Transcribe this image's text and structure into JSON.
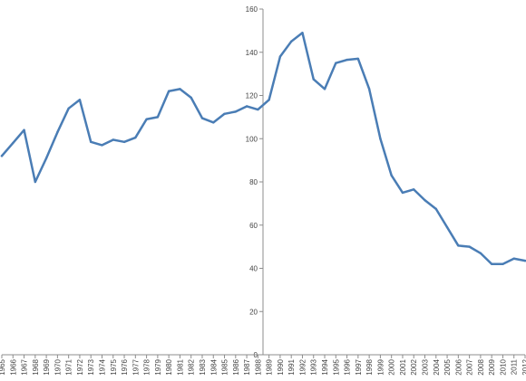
{
  "chart_data": {
    "type": "line",
    "title": "",
    "xlabel": "",
    "ylabel": "",
    "ylim": [
      0,
      160
    ],
    "yticks": [
      0,
      20,
      40,
      60,
      80,
      100,
      120,
      140,
      160
    ],
    "grid": false,
    "legend": "none",
    "categories": [
      "1965",
      "1966",
      "1967",
      "1968",
      "1969",
      "1970",
      "1971",
      "1972",
      "1973",
      "1974",
      "1975",
      "1976",
      "1977",
      "1978",
      "1979",
      "1980",
      "1981",
      "1982",
      "1983",
      "1984",
      "1985",
      "1986",
      "1987",
      "1988",
      "1989",
      "1990",
      "1991",
      "1992",
      "1993",
      "1994",
      "1995",
      "1996",
      "1997",
      "1998",
      "1999",
      "2000",
      "2001",
      "2002",
      "2003",
      "2004",
      "2005",
      "2006",
      "2007",
      "2008",
      "2009",
      "2010",
      "2011",
      "2012"
    ],
    "series": [
      {
        "values": [
          92,
          98,
          104,
          80,
          91,
          103,
          114,
          118,
          98.5,
          97,
          99.5,
          98.5,
          100.5,
          109,
          110,
          122,
          123,
          119,
          109.5,
          107.5,
          111.5,
          112.5,
          115,
          113.5,
          118,
          138,
          145,
          149,
          127.5,
          123,
          135,
          136.5,
          137,
          123,
          100,
          83,
          75,
          76.5,
          71.5,
          67.5,
          59,
          50.5,
          50,
          47,
          42,
          42,
          44.5,
          43.5
        ],
        "color": "#4a7db5"
      }
    ]
  }
}
